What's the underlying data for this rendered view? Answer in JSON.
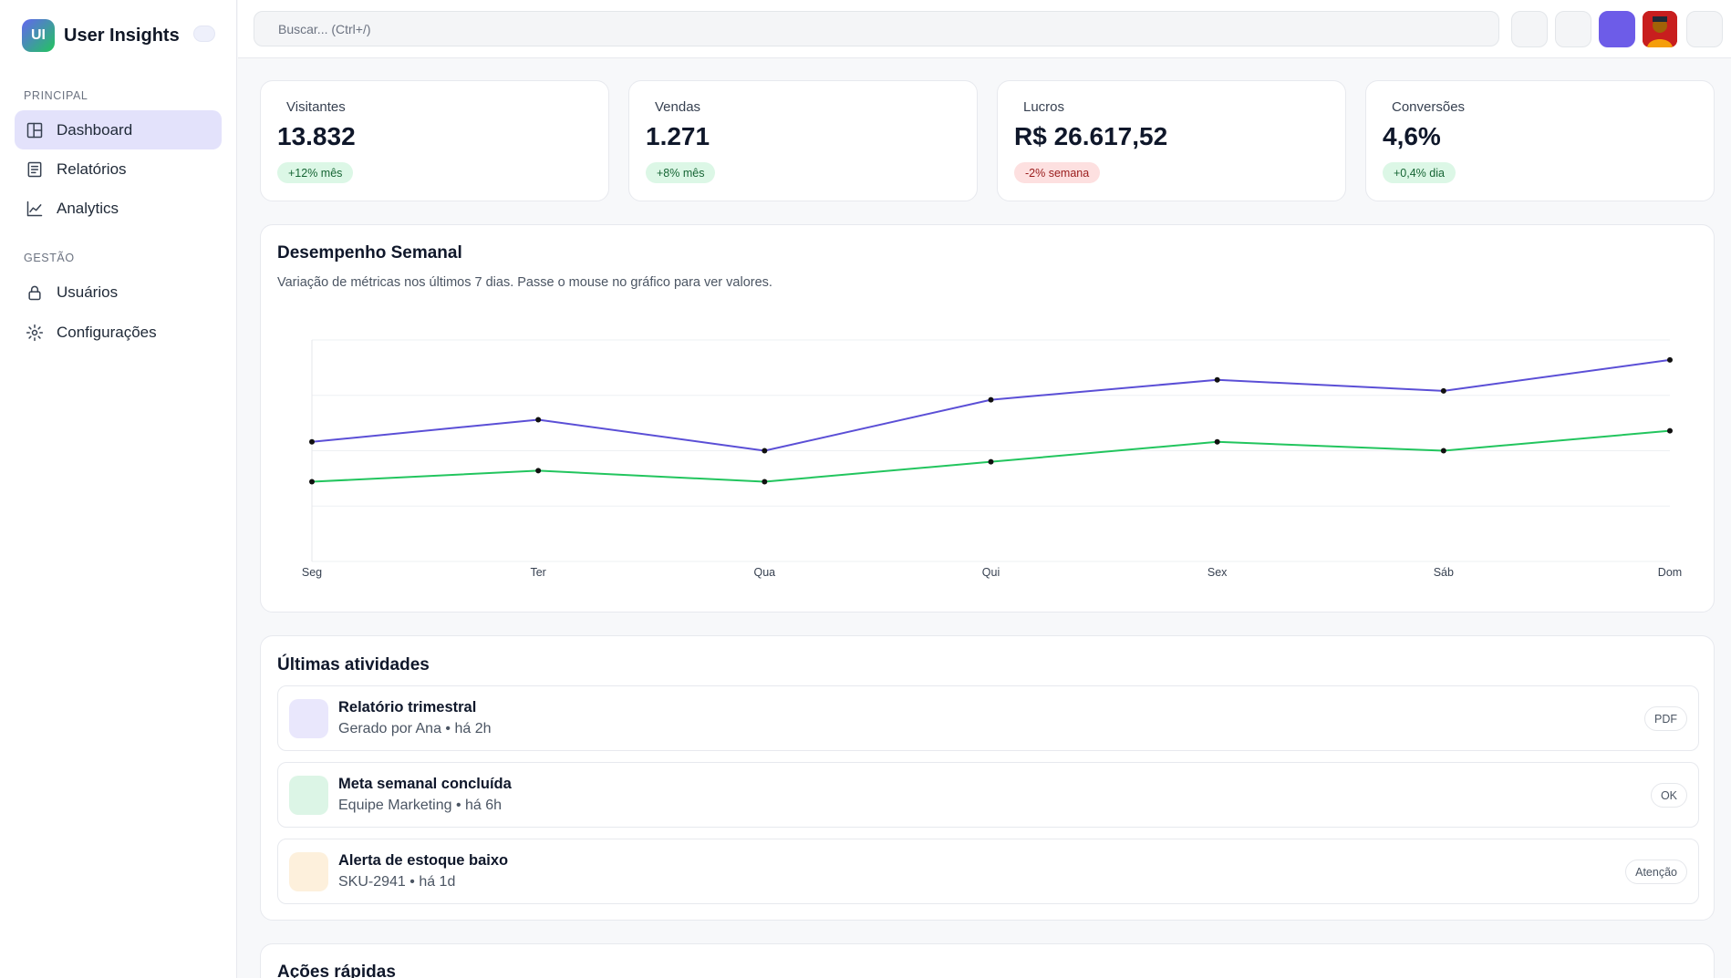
{
  "brand": {
    "logo_text": "UI",
    "name": "User Insights"
  },
  "sidebar": {
    "sections": [
      {
        "title": "PRINCIPAL"
      },
      {
        "title": "GESTÃO"
      }
    ],
    "items": [
      {
        "label": "Dashboard",
        "icon": "layout-icon",
        "active": true
      },
      {
        "label": "Relatórios",
        "icon": "document-icon",
        "active": false
      },
      {
        "label": "Analytics",
        "icon": "chart-line-icon",
        "active": false
      },
      {
        "label": "Usuários",
        "icon": "lock-icon",
        "active": false
      },
      {
        "label": "Configurações",
        "icon": "gear-icon",
        "active": false
      }
    ]
  },
  "search": {
    "placeholder": "Buscar... (Ctrl+/)"
  },
  "stats": [
    {
      "label": "Visitantes",
      "value": "13.832",
      "badge": "+12% mês",
      "trend": "up"
    },
    {
      "label": "Vendas",
      "value": "1.271",
      "badge": "+8% mês",
      "trend": "up"
    },
    {
      "label": "Lucros",
      "value": "R$ 26.617,52",
      "badge": "-2% semana",
      "trend": "down"
    },
    {
      "label": "Conversões",
      "value": "4,6%",
      "badge": "+0,4% dia",
      "trend": "up"
    }
  ],
  "weekly": {
    "title": "Desempenho Semanal",
    "subtitle": "Variação de métricas nos últimos 7 dias. Passe o mouse no gráfico para ver valores."
  },
  "chart_data": {
    "type": "line",
    "title": "Desempenho Semanal",
    "x": [
      "Seg",
      "Ter",
      "Qua",
      "Qui",
      "Sex",
      "Sáb",
      "Dom"
    ],
    "ylim": [
      0,
      100
    ],
    "grid": true,
    "series": [
      {
        "values": [
          54,
          64,
          50,
          73,
          82,
          77,
          91
        ],
        "color": "#5b4fd6"
      },
      {
        "values": [
          36,
          41,
          36,
          45,
          54,
          50,
          59
        ],
        "color": "#22c55e"
      }
    ]
  },
  "activities": {
    "title": "Últimas atividades",
    "items": [
      {
        "title": "Relatório trimestral",
        "subtitle": "Gerado por Ana • há 2h",
        "tag": "PDF",
        "icon_color": "#e9e7fc"
      },
      {
        "title": "Meta semanal concluída",
        "subtitle": "Equipe Marketing • há 6h",
        "tag": "OK",
        "icon_color": "#dcf5e6"
      },
      {
        "title": "Alerta de estoque baixo",
        "subtitle": "SKU-2941 • há 1d",
        "tag": "Atenção",
        "icon_color": "#fdf0dc"
      }
    ]
  },
  "quick_actions": {
    "title": "Ações rápidas"
  }
}
